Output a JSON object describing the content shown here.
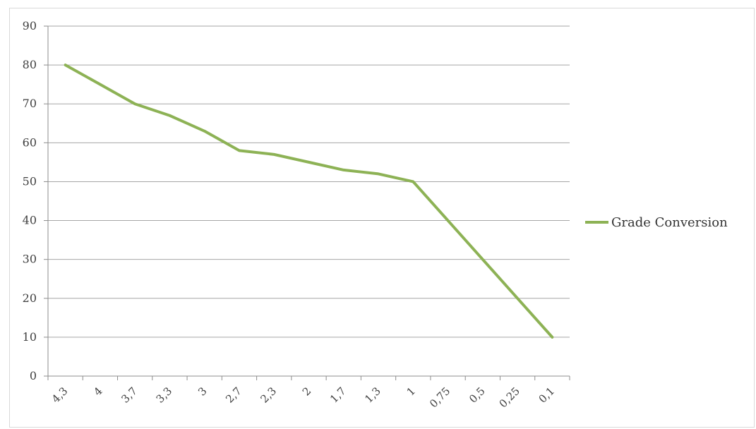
{
  "chart_data": {
    "type": "line",
    "categories": [
      "4,3",
      "4",
      "3,7",
      "3,3",
      "3",
      "2,7",
      "2,3",
      "2",
      "1,7",
      "1,3",
      "1",
      "0,75",
      "0,5",
      "0,25",
      "0,1"
    ],
    "series": [
      {
        "name": "Grade Conversion",
        "values": [
          80,
          75,
          70,
          67,
          63,
          58,
          57,
          55,
          53,
          52,
          50,
          40,
          30,
          20,
          10
        ],
        "color": "#8db255"
      }
    ],
    "title": "",
    "xlabel": "",
    "ylabel": "",
    "ylim": [
      0,
      90
    ],
    "yticks": [
      "0",
      "10",
      "20",
      "30",
      "40",
      "50",
      "60",
      "70",
      "80",
      "90"
    ],
    "grid": true,
    "legend": "right"
  }
}
